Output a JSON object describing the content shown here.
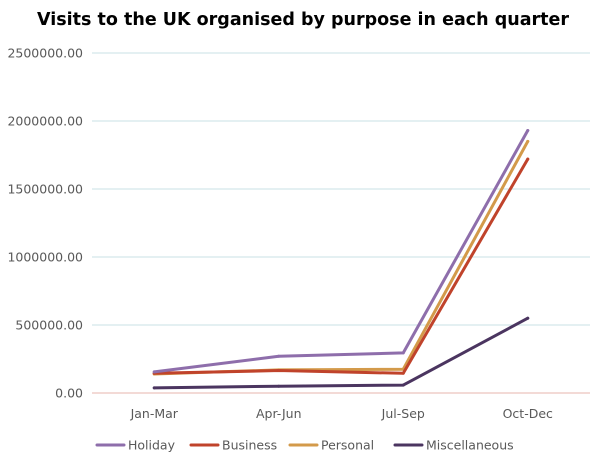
{
  "chart_data": {
    "type": "line",
    "title": "Visits to the UK organised by purpose in each quarter",
    "xlabel": "",
    "ylabel": "",
    "categories": [
      "Jan-Mar",
      "Apr-Jun",
      "Jul-Sep",
      "Oct-Dec"
    ],
    "ylim": [
      0,
      2500000
    ],
    "yticks": [
      0,
      500000,
      1000000,
      1500000,
      2000000,
      2500000
    ],
    "ytick_labels": [
      "0.00",
      "500000.00",
      "1000000.00",
      "1500000.00",
      "2000000.00",
      "2500000.00"
    ],
    "grid": true,
    "legend_position": "bottom",
    "series": [
      {
        "name": "Holiday",
        "color": "#8e6eab",
        "values": [
          155000,
          270000,
          295000,
          1930000
        ]
      },
      {
        "name": "Business",
        "color": "#c0432b",
        "values": [
          145000,
          165000,
          145000,
          1720000
        ]
      },
      {
        "name": "Personal",
        "color": "#d39a4a",
        "values": [
          140000,
          170000,
          175000,
          1850000
        ]
      },
      {
        "name": "Miscellaneous",
        "color": "#4b3560",
        "values": [
          38000,
          50000,
          58000,
          550000
        ]
      }
    ],
    "gridline_color": "#c9e2e4",
    "baseline_color": "#e7b6ae"
  }
}
